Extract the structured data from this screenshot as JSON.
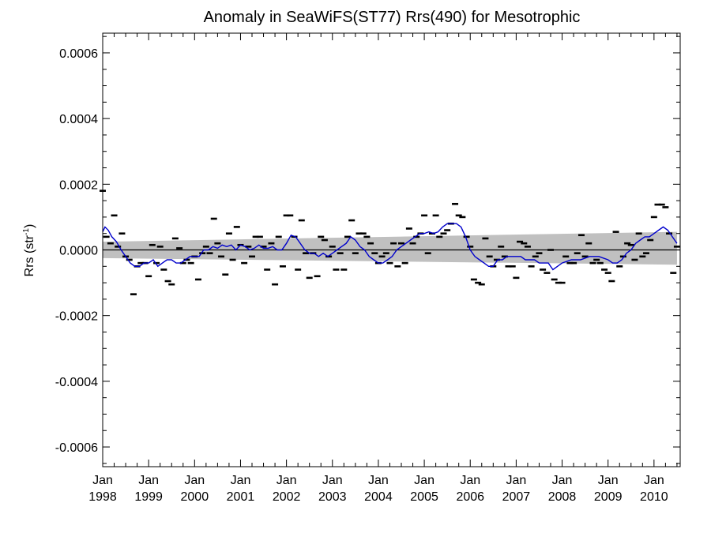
{
  "chart_data": {
    "type": "scatter",
    "title": "Anomaly in SeaWiFS(ST77) Rrs(490) for Mesotrophic",
    "xlabel": "",
    "ylabel": "Rrs (str",
    "ylabel_sup": "-1",
    "ylabel_close": ")",
    "xlim": [
      1998.0,
      2010.5
    ],
    "ylim": [
      -0.00066,
      0.00066
    ],
    "y_ticks": [
      {
        "value": 0.0006,
        "label": "0.0006"
      },
      {
        "value": 0.0004,
        "label": "0.0004"
      },
      {
        "value": 0.0002,
        "label": "0.0002"
      },
      {
        "value": 0.0,
        "label": "0.0000"
      },
      {
        "value": -0.0002,
        "label": "-0.0002"
      },
      {
        "value": -0.0004,
        "label": "-0.0004"
      },
      {
        "value": -0.0006,
        "label": "-0.0006"
      }
    ],
    "x_ticks": [
      {
        "value": 1998,
        "month": "Jan",
        "year": "1998"
      },
      {
        "value": 1999,
        "month": "Jan",
        "year": "1999"
      },
      {
        "value": 2000,
        "month": "Jan",
        "year": "2000"
      },
      {
        "value": 2001,
        "month": "Jan",
        "year": "2001"
      },
      {
        "value": 2002,
        "month": "Jan",
        "year": "2002"
      },
      {
        "value": 2003,
        "month": "Jan",
        "year": "2003"
      },
      {
        "value": 2004,
        "month": "Jan",
        "year": "2004"
      },
      {
        "value": 2005,
        "month": "Jan",
        "year": "2005"
      },
      {
        "value": 2006,
        "month": "Jan",
        "year": "2006"
      },
      {
        "value": 2007,
        "month": "Jan",
        "year": "2007"
      },
      {
        "value": 2008,
        "month": "Jan",
        "year": "2008"
      },
      {
        "value": 2009,
        "month": "Jan",
        "year": "2009"
      },
      {
        "value": 2010,
        "month": "Jan",
        "year": "2010"
      }
    ],
    "grid": false,
    "monthly_anomaly": [
      [
        1998.0,
        0.00018
      ],
      [
        1998.08,
        4e-05
      ],
      [
        1998.17,
        2e-05
      ],
      [
        1998.25,
        0.000105
      ],
      [
        1998.33,
        1e-05
      ],
      [
        1998.42,
        5e-05
      ],
      [
        1998.5,
        -2e-05
      ],
      [
        1998.58,
        -3e-05
      ],
      [
        1998.67,
        -0.000135
      ],
      [
        1998.75,
        -5e-05
      ],
      [
        1998.83,
        -4e-05
      ],
      [
        1998.92,
        -4e-05
      ],
      [
        1999.0,
        -8e-05
      ],
      [
        1999.08,
        1.5e-05
      ],
      [
        1999.17,
        -4e-05
      ],
      [
        1999.25,
        1e-05
      ],
      [
        1999.33,
        -6e-05
      ],
      [
        1999.42,
        -9.5e-05
      ],
      [
        1999.5,
        -0.000105
      ],
      [
        1999.58,
        3.5e-05
      ],
      [
        1999.67,
        5e-06
      ],
      [
        1999.75,
        -4e-05
      ],
      [
        1999.83,
        -3e-05
      ],
      [
        1999.92,
        -4e-05
      ],
      [
        2000.0,
        -2e-05
      ],
      [
        2000.08,
        -9e-05
      ],
      [
        2000.17,
        -1e-05
      ],
      [
        2000.25,
        1e-05
      ],
      [
        2000.33,
        -1e-05
      ],
      [
        2000.42,
        9.5e-05
      ],
      [
        2000.5,
        2e-05
      ],
      [
        2000.58,
        -2e-05
      ],
      [
        2000.67,
        -7.5e-05
      ],
      [
        2000.75,
        5e-05
      ],
      [
        2000.83,
        -3e-05
      ],
      [
        2000.92,
        7e-05
      ],
      [
        2001.0,
        1.5e-05
      ],
      [
        2001.08,
        -4e-05
      ],
      [
        2001.17,
        1e-05
      ],
      [
        2001.25,
        -2e-05
      ],
      [
        2001.33,
        4e-05
      ],
      [
        2001.42,
        4e-05
      ],
      [
        2001.5,
        1e-05
      ],
      [
        2001.58,
        -6e-05
      ],
      [
        2001.67,
        2e-05
      ],
      [
        2001.75,
        -0.000105
      ],
      [
        2001.83,
        4e-05
      ],
      [
        2001.92,
        -5e-05
      ],
      [
        2002.0,
        0.000105
      ],
      [
        2002.08,
        0.000105
      ],
      [
        2002.17,
        4e-05
      ],
      [
        2002.25,
        -6e-05
      ],
      [
        2002.33,
        9e-05
      ],
      [
        2002.42,
        -1e-05
      ],
      [
        2002.5,
        -8.5e-05
      ],
      [
        2002.58,
        -1e-05
      ],
      [
        2002.67,
        -8e-05
      ],
      [
        2002.75,
        4e-05
      ],
      [
        2002.83,
        3e-05
      ],
      [
        2002.92,
        -2e-05
      ],
      [
        2003.0,
        1e-05
      ],
      [
        2003.08,
        -6e-05
      ],
      [
        2003.17,
        -1e-05
      ],
      [
        2003.25,
        -6e-05
      ],
      [
        2003.33,
        4e-05
      ],
      [
        2003.42,
        9e-05
      ],
      [
        2003.5,
        -1e-05
      ],
      [
        2003.58,
        5e-05
      ],
      [
        2003.67,
        5e-05
      ],
      [
        2003.75,
        4e-05
      ],
      [
        2003.83,
        2e-05
      ],
      [
        2003.92,
        -1e-05
      ],
      [
        2004.0,
        -4e-05
      ],
      [
        2004.08,
        -2e-05
      ],
      [
        2004.17,
        -1e-05
      ],
      [
        2004.25,
        -4e-05
      ],
      [
        2004.33,
        2e-05
      ],
      [
        2004.42,
        -5e-05
      ],
      [
        2004.5,
        2e-05
      ],
      [
        2004.58,
        -4e-05
      ],
      [
        2004.67,
        6.5e-05
      ],
      [
        2004.75,
        2e-05
      ],
      [
        2004.83,
        4e-05
      ],
      [
        2004.92,
        5e-05
      ],
      [
        2005.0,
        0.000105
      ],
      [
        2005.08,
        -1e-05
      ],
      [
        2005.17,
        5e-05
      ],
      [
        2005.25,
        0.000105
      ],
      [
        2005.33,
        4e-05
      ],
      [
        2005.42,
        5e-05
      ],
      [
        2005.5,
        6e-05
      ],
      [
        2005.58,
        8e-05
      ],
      [
        2005.67,
        0.00014
      ],
      [
        2005.75,
        0.000105
      ],
      [
        2005.83,
        0.0001
      ],
      [
        2005.92,
        4e-05
      ],
      [
        2006.0,
        1e-05
      ],
      [
        2006.08,
        -9e-05
      ],
      [
        2006.17,
        -0.0001
      ],
      [
        2006.25,
        -0.000105
      ],
      [
        2006.33,
        3.5e-05
      ],
      [
        2006.42,
        -2e-05
      ],
      [
        2006.5,
        -5e-05
      ],
      [
        2006.58,
        -3e-05
      ],
      [
        2006.67,
        1e-05
      ],
      [
        2006.75,
        -2e-05
      ],
      [
        2006.83,
        -5e-05
      ],
      [
        2006.92,
        -5e-05
      ],
      [
        2007.0,
        -8.5e-05
      ],
      [
        2007.08,
        2.5e-05
      ],
      [
        2007.17,
        2e-05
      ],
      [
        2007.25,
        1e-05
      ],
      [
        2007.33,
        -5e-05
      ],
      [
        2007.42,
        -2e-05
      ],
      [
        2007.5,
        -1e-05
      ],
      [
        2007.58,
        -6e-05
      ],
      [
        2007.67,
        -7e-05
      ],
      [
        2007.75,
        0.0
      ],
      [
        2007.83,
        -9e-05
      ],
      [
        2007.92,
        -0.0001
      ],
      [
        2008.0,
        -0.0001
      ],
      [
        2008.08,
        -2e-05
      ],
      [
        2008.17,
        -4e-05
      ],
      [
        2008.25,
        -4e-05
      ],
      [
        2008.33,
        -1e-05
      ],
      [
        2008.42,
        4.5e-05
      ],
      [
        2008.5,
        -2e-05
      ],
      [
        2008.58,
        2e-05
      ],
      [
        2008.67,
        -4e-05
      ],
      [
        2008.75,
        -3e-05
      ],
      [
        2008.83,
        -4e-05
      ],
      [
        2008.92,
        -6e-05
      ],
      [
        2009.0,
        -7e-05
      ],
      [
        2009.08,
        -9.5e-05
      ],
      [
        2009.17,
        5.5e-05
      ],
      [
        2009.25,
        -5e-05
      ],
      [
        2009.33,
        -2e-05
      ],
      [
        2009.42,
        2e-05
      ],
      [
        2009.5,
        1.5e-05
      ],
      [
        2009.58,
        -3e-05
      ],
      [
        2009.67,
        5e-05
      ],
      [
        2009.75,
        -2e-05
      ],
      [
        2009.83,
        -1e-05
      ],
      [
        2009.92,
        3e-05
      ],
      [
        2010.0,
        0.0001
      ],
      [
        2010.08,
        0.000138
      ],
      [
        2010.17,
        0.000138
      ],
      [
        2010.25,
        0.00013
      ],
      [
        2010.33,
        5e-05
      ],
      [
        2010.42,
        -7e-05
      ],
      [
        2010.5,
        1e-05
      ]
    ],
    "smoothed_anomaly": [
      [
        1998.0,
        5.5e-05
      ],
      [
        1998.05,
        7e-05
      ],
      [
        1998.12,
        6e-05
      ],
      [
        1998.2,
        4e-05
      ],
      [
        1998.3,
        2.5e-05
      ],
      [
        1998.4,
        0.0
      ],
      [
        1998.5,
        -2e-05
      ],
      [
        1998.6,
        -4e-05
      ],
      [
        1998.7,
        -5e-05
      ],
      [
        1998.8,
        -5e-05
      ],
      [
        1998.9,
        -4e-05
      ],
      [
        1999.0,
        -4e-05
      ],
      [
        1999.1,
        -3e-05
      ],
      [
        1999.2,
        -5e-05
      ],
      [
        1999.3,
        -4e-05
      ],
      [
        1999.4,
        -3e-05
      ],
      [
        1999.5,
        -3e-05
      ],
      [
        1999.6,
        -4e-05
      ],
      [
        1999.7,
        -4e-05
      ],
      [
        1999.8,
        -3e-05
      ],
      [
        1999.9,
        -2e-05
      ],
      [
        2000.0,
        -2e-05
      ],
      [
        2000.1,
        -2e-05
      ],
      [
        2000.2,
        0.0
      ],
      [
        2000.3,
        0.0
      ],
      [
        2000.4,
        1e-05
      ],
      [
        2000.5,
        5e-06
      ],
      [
        2000.6,
        1.5e-05
      ],
      [
        2000.7,
        1e-05
      ],
      [
        2000.8,
        1.5e-05
      ],
      [
        2000.9,
        0.0
      ],
      [
        2001.0,
        1.5e-05
      ],
      [
        2001.1,
        1e-05
      ],
      [
        2001.2,
        0.0
      ],
      [
        2001.3,
        5e-06
      ],
      [
        2001.4,
        1.5e-05
      ],
      [
        2001.5,
        5e-06
      ],
      [
        2001.6,
        5e-06
      ],
      [
        2001.7,
        1e-05
      ],
      [
        2001.8,
        0.0
      ],
      [
        2001.9,
        0.0
      ],
      [
        2002.0,
        2e-05
      ],
      [
        2002.1,
        4.5e-05
      ],
      [
        2002.2,
        4e-05
      ],
      [
        2002.3,
        2e-05
      ],
      [
        2002.4,
        0.0
      ],
      [
        2002.5,
        -1e-05
      ],
      [
        2002.6,
        -1e-05
      ],
      [
        2002.7,
        -2e-05
      ],
      [
        2002.8,
        -1e-05
      ],
      [
        2002.9,
        -2e-05
      ],
      [
        2003.0,
        -1e-05
      ],
      [
        2003.1,
        0.0
      ],
      [
        2003.2,
        1e-05
      ],
      [
        2003.3,
        2e-05
      ],
      [
        2003.4,
        4e-05
      ],
      [
        2003.5,
        3e-05
      ],
      [
        2003.6,
        1e-05
      ],
      [
        2003.7,
        0.0
      ],
      [
        2003.8,
        -2e-05
      ],
      [
        2003.9,
        -3e-05
      ],
      [
        2004.0,
        -4e-05
      ],
      [
        2004.1,
        -4e-05
      ],
      [
        2004.2,
        -3e-05
      ],
      [
        2004.3,
        -2e-05
      ],
      [
        2004.4,
        0.0
      ],
      [
        2004.5,
        1e-05
      ],
      [
        2004.6,
        2e-05
      ],
      [
        2004.7,
        3e-05
      ],
      [
        2004.8,
        4e-05
      ],
      [
        2004.9,
        5e-05
      ],
      [
        2005.0,
        5e-05
      ],
      [
        2005.1,
        5.5e-05
      ],
      [
        2005.2,
        5e-05
      ],
      [
        2005.3,
        5.5e-05
      ],
      [
        2005.4,
        7e-05
      ],
      [
        2005.5,
        8e-05
      ],
      [
        2005.6,
        8e-05
      ],
      [
        2005.7,
        8e-05
      ],
      [
        2005.8,
        7e-05
      ],
      [
        2005.9,
        4e-05
      ],
      [
        2006.0,
        0.0
      ],
      [
        2006.1,
        -2e-05
      ],
      [
        2006.2,
        -3e-05
      ],
      [
        2006.3,
        -4e-05
      ],
      [
        2006.4,
        -5e-05
      ],
      [
        2006.5,
        -5e-05
      ],
      [
        2006.6,
        -3e-05
      ],
      [
        2006.7,
        -3e-05
      ],
      [
        2006.8,
        -2e-05
      ],
      [
        2006.9,
        -2e-05
      ],
      [
        2007.0,
        -2e-05
      ],
      [
        2007.1,
        -2e-05
      ],
      [
        2007.2,
        -3e-05
      ],
      [
        2007.3,
        -3e-05
      ],
      [
        2007.4,
        -3e-05
      ],
      [
        2007.5,
        -4e-05
      ],
      [
        2007.6,
        -4e-05
      ],
      [
        2007.7,
        -4e-05
      ],
      [
        2007.8,
        -6e-05
      ],
      [
        2007.9,
        -5e-05
      ],
      [
        2008.0,
        -4e-05
      ],
      [
        2008.2,
        -3e-05
      ],
      [
        2008.4,
        -3e-05
      ],
      [
        2008.6,
        -2e-05
      ],
      [
        2008.8,
        -2e-05
      ],
      [
        2009.0,
        -3e-05
      ],
      [
        2009.1,
        -4e-05
      ],
      [
        2009.2,
        -4e-05
      ],
      [
        2009.3,
        -3e-05
      ],
      [
        2009.4,
        -1e-05
      ],
      [
        2009.5,
        0.0
      ],
      [
        2009.6,
        2e-05
      ],
      [
        2009.7,
        3e-05
      ],
      [
        2009.8,
        4e-05
      ],
      [
        2009.9,
        4e-05
      ],
      [
        2010.0,
        5e-05
      ],
      [
        2010.1,
        6e-05
      ],
      [
        2010.2,
        7e-05
      ],
      [
        2010.3,
        6e-05
      ],
      [
        2010.4,
        4e-05
      ],
      [
        2010.5,
        2e-05
      ]
    ],
    "trend_band": {
      "x": [
        1998.0,
        2010.5
      ],
      "lower": [
        -2.5e-05,
        -4.5e-05
      ],
      "upper": [
        2.5e-05,
        5.5e-05
      ]
    },
    "zero_line": 0.0,
    "colors": {
      "points": "#000000",
      "smoothed": "#0000cc",
      "band": "#c0c0c0",
      "zero": "#000000",
      "axes": "#000000"
    }
  }
}
